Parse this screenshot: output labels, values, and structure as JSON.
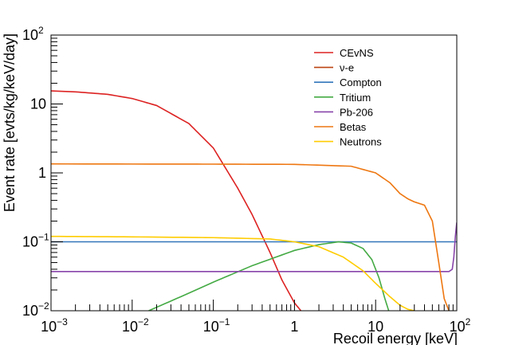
{
  "chart_data": {
    "type": "line",
    "title": "",
    "xlabel": "Recoil energy [keV]",
    "ylabel": "Event rate [evts/kg/keV/day]",
    "xscale": "log",
    "yscale": "log",
    "xlim": [
      0.001,
      100
    ],
    "ylim": [
      0.01,
      100
    ],
    "grid": false,
    "legend_position": "top-right",
    "x_tick_labels": [
      {
        "value": 0.001,
        "base": "10",
        "exp": "−3"
      },
      {
        "value": 0.01,
        "base": "10",
        "exp": "−2"
      },
      {
        "value": 0.1,
        "base": "10",
        "exp": "−1"
      },
      {
        "value": 1,
        "base": "1",
        "exp": ""
      },
      {
        "value": 10,
        "base": "10",
        "exp": ""
      },
      {
        "value": 100,
        "base": "10",
        "exp": "2"
      }
    ],
    "y_tick_labels": [
      {
        "value": 0.01,
        "base": "10",
        "exp": "−2"
      },
      {
        "value": 0.1,
        "base": "10",
        "exp": "−1"
      },
      {
        "value": 1,
        "base": "1",
        "exp": ""
      },
      {
        "value": 10,
        "base": "10",
        "exp": ""
      },
      {
        "value": 100,
        "base": "10",
        "exp": "2"
      }
    ],
    "series": [
      {
        "name": "CEvNS",
        "color": "#dd2222",
        "x": [
          0.001,
          0.002,
          0.005,
          0.01,
          0.02,
          0.05,
          0.1,
          0.2,
          0.3,
          0.5,
          0.7,
          1.0,
          1.2
        ],
        "y": [
          15.5,
          15.0,
          13.8,
          12.0,
          9.5,
          5.2,
          2.3,
          0.6,
          0.25,
          0.07,
          0.028,
          0.013,
          0.01
        ]
      },
      {
        "name": "ν-e",
        "color": "#bb4411",
        "x": [],
        "y": []
      },
      {
        "name": "Compton",
        "color": "#3377bb",
        "x": [
          0.001,
          100
        ],
        "y": [
          0.1,
          0.1
        ]
      },
      {
        "name": "Tritium",
        "color": "#44aa44",
        "x": [
          0.016,
          0.05,
          0.1,
          0.3,
          1.0,
          2.0,
          3.5,
          5.0,
          7.0,
          9.0,
          11.0,
          13.0,
          14.5
        ],
        "y": [
          0.01,
          0.018,
          0.026,
          0.045,
          0.075,
          0.091,
          0.1,
          0.096,
          0.08,
          0.055,
          0.03,
          0.015,
          0.01
        ]
      },
      {
        "name": "Pb-206",
        "color": "#8844aa",
        "x": [
          0.001,
          80,
          88,
          92,
          96,
          100
        ],
        "y": [
          0.037,
          0.037,
          0.04,
          0.06,
          0.12,
          0.19
        ]
      },
      {
        "name": "Betas",
        "color": "#ee7711",
        "x": [
          0.001,
          0.1,
          1.0,
          5.0,
          10,
          15,
          20,
          25,
          30,
          40,
          50,
          60,
          70,
          80
        ],
        "y": [
          1.35,
          1.34,
          1.33,
          1.25,
          1.0,
          0.72,
          0.5,
          0.42,
          0.38,
          0.34,
          0.2,
          0.05,
          0.015,
          0.01
        ]
      },
      {
        "name": "Neutrons",
        "color": "#ffcc00",
        "x": [
          0.001,
          0.01,
          0.1,
          0.5,
          1.0,
          2.0,
          4.0,
          7.0,
          10,
          15,
          20,
          25,
          30
        ],
        "y": [
          0.12,
          0.118,
          0.115,
          0.11,
          0.1,
          0.085,
          0.06,
          0.038,
          0.025,
          0.016,
          0.012,
          0.0105,
          0.01
        ]
      }
    ]
  }
}
